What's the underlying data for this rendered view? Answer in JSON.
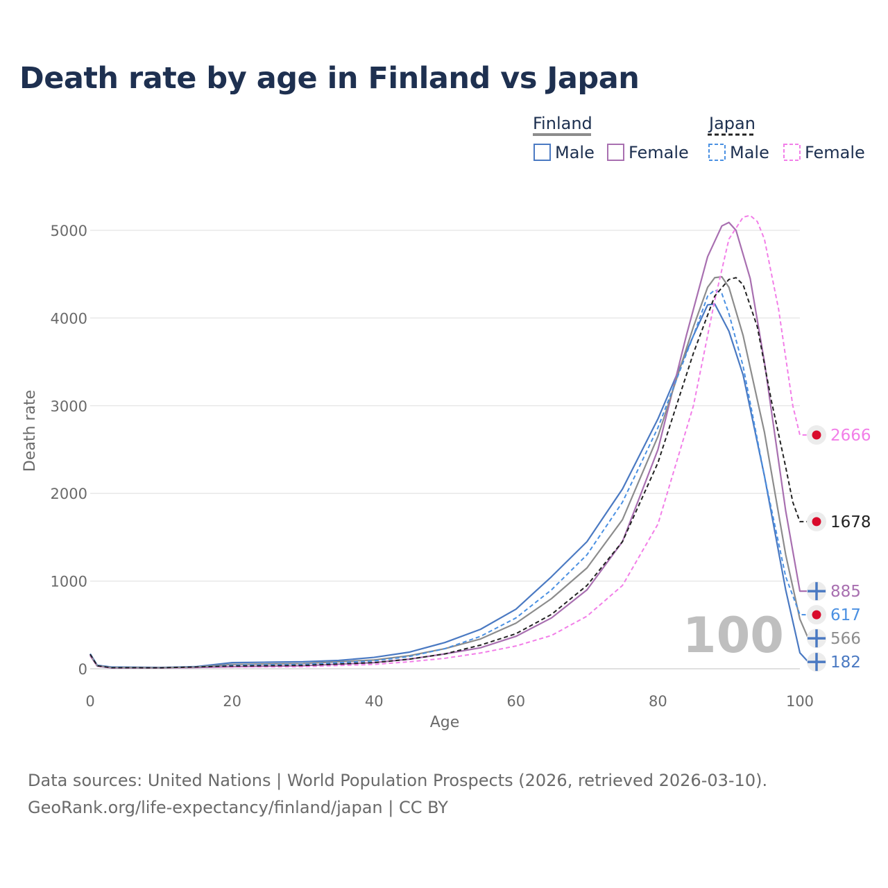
{
  "title": "Death rate by age in Finland vs Japan",
  "footer": {
    "line1": "Data sources: United Nations | World Population Prospects (2026, retrieved 2026-03-10).",
    "line2": "GeoRank.org/life-expectancy/finland/japan | CC BY"
  },
  "legend": {
    "finland": {
      "label": "Finland",
      "color": "#8c8c8c",
      "items": [
        {
          "label": "Male",
          "color": "#4a79c2"
        },
        {
          "label": "Female",
          "color": "#a86fb0"
        }
      ]
    },
    "japan": {
      "label": "Japan",
      "color": "#222222",
      "items": [
        {
          "label": "Male",
          "color": "#4a90e2"
        },
        {
          "label": "Female",
          "color": "#f27ee8"
        }
      ]
    }
  },
  "current_age": "100",
  "chart_data": {
    "type": "line",
    "title": "Death rate by age in Finland vs Japan",
    "xlabel": "Age",
    "ylabel": "Death rate",
    "xlim": [
      0,
      100
    ],
    "ylim": [
      0,
      5300
    ],
    "xticks": [
      0,
      20,
      40,
      60,
      80,
      100
    ],
    "yticks": [
      0,
      1000,
      2000,
      3000,
      4000,
      5000
    ],
    "grid": true,
    "series": [
      {
        "name": "Finland Male",
        "color": "#4a79c2",
        "dash": false,
        "end_label": "182",
        "end_value": 182,
        "marker": "plus",
        "points": [
          [
            0,
            170
          ],
          [
            1,
            40
          ],
          [
            3,
            20
          ],
          [
            10,
            15
          ],
          [
            15,
            25
          ],
          [
            20,
            70
          ],
          [
            25,
            75
          ],
          [
            30,
            80
          ],
          [
            35,
            95
          ],
          [
            40,
            130
          ],
          [
            45,
            190
          ],
          [
            50,
            300
          ],
          [
            55,
            450
          ],
          [
            60,
            680
          ],
          [
            65,
            1050
          ],
          [
            70,
            1450
          ],
          [
            75,
            2050
          ],
          [
            80,
            2850
          ],
          [
            85,
            3800
          ],
          [
            87,
            4150
          ],
          [
            88,
            4160
          ],
          [
            90,
            3850
          ],
          [
            92,
            3350
          ],
          [
            95,
            2200
          ],
          [
            98,
            900
          ],
          [
            100,
            182
          ]
        ]
      },
      {
        "name": "Finland Female",
        "color": "#a86fb0",
        "dash": false,
        "end_label": "885",
        "end_value": 885,
        "marker": "plus",
        "points": [
          [
            0,
            150
          ],
          [
            1,
            30
          ],
          [
            3,
            10
          ],
          [
            10,
            10
          ],
          [
            15,
            15
          ],
          [
            20,
            25
          ],
          [
            30,
            35
          ],
          [
            40,
            70
          ],
          [
            45,
            110
          ],
          [
            50,
            170
          ],
          [
            55,
            240
          ],
          [
            60,
            370
          ],
          [
            65,
            580
          ],
          [
            70,
            900
          ],
          [
            75,
            1450
          ],
          [
            80,
            2500
          ],
          [
            84,
            3800
          ],
          [
            87,
            4700
          ],
          [
            89,
            5050
          ],
          [
            90,
            5090
          ],
          [
            91,
            5000
          ],
          [
            93,
            4450
          ],
          [
            95,
            3500
          ],
          [
            98,
            1800
          ],
          [
            100,
            885
          ]
        ]
      },
      {
        "name": "Finland Total",
        "color": "#8c8c8c",
        "dash": false,
        "end_label": "566",
        "end_value": 566,
        "marker": "plus",
        "points": [
          [
            0,
            160
          ],
          [
            1,
            35
          ],
          [
            3,
            15
          ],
          [
            10,
            12
          ],
          [
            15,
            20
          ],
          [
            20,
            50
          ],
          [
            30,
            60
          ],
          [
            40,
            100
          ],
          [
            45,
            150
          ],
          [
            50,
            230
          ],
          [
            55,
            340
          ],
          [
            60,
            520
          ],
          [
            65,
            800
          ],
          [
            70,
            1150
          ],
          [
            75,
            1700
          ],
          [
            80,
            2650
          ],
          [
            85,
            3900
          ],
          [
            87,
            4350
          ],
          [
            88,
            4460
          ],
          [
            89,
            4470
          ],
          [
            90,
            4350
          ],
          [
            92,
            3800
          ],
          [
            95,
            2700
          ],
          [
            98,
            1300
          ],
          [
            100,
            566
          ]
        ]
      },
      {
        "name": "Japan Male",
        "color": "#4a90e2",
        "dash": true,
        "end_label": "617",
        "end_value": 617,
        "marker": "dot",
        "points": [
          [
            0,
            170
          ],
          [
            1,
            35
          ],
          [
            3,
            15
          ],
          [
            10,
            12
          ],
          [
            15,
            18
          ],
          [
            20,
            40
          ],
          [
            30,
            50
          ],
          [
            40,
            90
          ],
          [
            45,
            140
          ],
          [
            50,
            230
          ],
          [
            55,
            370
          ],
          [
            60,
            580
          ],
          [
            65,
            900
          ],
          [
            70,
            1300
          ],
          [
            75,
            1900
          ],
          [
            80,
            2750
          ],
          [
            85,
            3800
          ],
          [
            87,
            4250
          ],
          [
            88,
            4320
          ],
          [
            89,
            4280
          ],
          [
            90,
            4050
          ],
          [
            92,
            3450
          ],
          [
            95,
            2200
          ],
          [
            98,
            1050
          ],
          [
            100,
            617
          ]
        ]
      },
      {
        "name": "Japan Female",
        "color": "#f27ee8",
        "dash": true,
        "end_label": "2666",
        "end_value": 2666,
        "marker": "dot",
        "points": [
          [
            0,
            160
          ],
          [
            1,
            30
          ],
          [
            3,
            10
          ],
          [
            10,
            10
          ],
          [
            20,
            20
          ],
          [
            30,
            25
          ],
          [
            40,
            50
          ],
          [
            45,
            80
          ],
          [
            50,
            120
          ],
          [
            55,
            180
          ],
          [
            60,
            260
          ],
          [
            65,
            380
          ],
          [
            70,
            600
          ],
          [
            75,
            950
          ],
          [
            80,
            1650
          ],
          [
            85,
            3000
          ],
          [
            88,
            4200
          ],
          [
            90,
            4900
          ],
          [
            92,
            5150
          ],
          [
            93,
            5170
          ],
          [
            94,
            5100
          ],
          [
            95,
            4900
          ],
          [
            97,
            4100
          ],
          [
            99,
            3000
          ],
          [
            100,
            2666
          ]
        ]
      },
      {
        "name": "Japan Total",
        "color": "#222222",
        "dash": true,
        "end_label": "1678",
        "end_value": 1678,
        "marker": "dot",
        "points": [
          [
            0,
            165
          ],
          [
            1,
            33
          ],
          [
            3,
            12
          ],
          [
            10,
            11
          ],
          [
            20,
            30
          ],
          [
            30,
            38
          ],
          [
            40,
            70
          ],
          [
            45,
            110
          ],
          [
            50,
            170
          ],
          [
            55,
            270
          ],
          [
            60,
            400
          ],
          [
            65,
            620
          ],
          [
            70,
            950
          ],
          [
            75,
            1450
          ],
          [
            80,
            2350
          ],
          [
            85,
            3600
          ],
          [
            88,
            4250
          ],
          [
            90,
            4440
          ],
          [
            91,
            4460
          ],
          [
            92,
            4380
          ],
          [
            94,
            3900
          ],
          [
            96,
            3050
          ],
          [
            98,
            2300
          ],
          [
            99,
            1900
          ],
          [
            100,
            1678
          ]
        ]
      }
    ]
  }
}
